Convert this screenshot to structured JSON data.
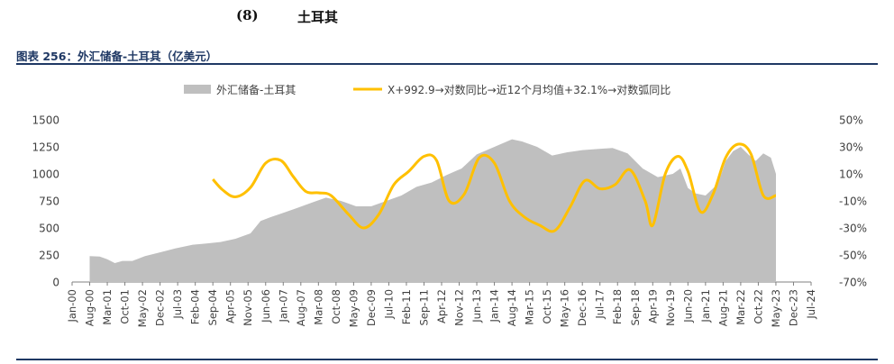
{
  "section": {
    "number": "(8)",
    "title": "土耳其"
  },
  "figure": {
    "caption": "图表 256：外汇储备-土耳其（亿美元）"
  },
  "colors": {
    "area": "#bfbfbf",
    "line": "#ffc000",
    "axis": "#808080",
    "text": "#404040",
    "caption": "#1f3864"
  },
  "chart_data": {
    "type": "area+line",
    "legend": {
      "position": "top",
      "entries": [
        "外汇储备-土耳其",
        "X+992.9→对数同比→近12个月均值+32.1%→对数弧同比"
      ]
    },
    "x_tick_labels": [
      "Jan-00",
      "Aug-00",
      "Mar-01",
      "Oct-01",
      "May-02",
      "Dec-02",
      "Jul-03",
      "Feb-04",
      "Sep-04",
      "Apr-05",
      "Nov-05",
      "Jun-06",
      "Jan-07",
      "Aug-07",
      "Mar-08",
      "Oct-08",
      "May-09",
      "Dec-09",
      "Jul-10",
      "Feb-11",
      "Sep-11",
      "Apr-12",
      "Nov-12",
      "Jun-13",
      "Jan-14",
      "Aug-14",
      "Mar-15",
      "Oct-15",
      "May-16",
      "Dec-16",
      "Jul-17",
      "Feb-18",
      "Sep-18",
      "Apr-19",
      "Nov-19",
      "Jun-20",
      "Jan-21",
      "Aug-21",
      "Mar-22",
      "Oct-22",
      "May-23",
      "Dec-23",
      "Jul-24"
    ],
    "y_left": {
      "min": 0,
      "max": 1500,
      "ticks": [
        "0",
        "250",
        "500",
        "750",
        "1000",
        "1250",
        "1500"
      ]
    },
    "y_right": {
      "min": -70,
      "max": 50,
      "ticks": [
        "-70%",
        "-50%",
        "-30%",
        "-10%",
        "10%",
        "30%",
        "50%"
      ]
    },
    "series": [
      {
        "name": "外汇储备-土耳其",
        "axis": "left",
        "type": "area",
        "x": [
          "2000-08",
          "2000-12",
          "2001-03",
          "2001-06",
          "2001-09",
          "2002-01",
          "2002-06",
          "2003-01",
          "2003-06",
          "2004-01",
          "2004-06",
          "2004-12",
          "2005-06",
          "2005-12",
          "2006-04",
          "2006-08",
          "2007-01",
          "2007-06",
          "2008-01",
          "2008-06",
          "2008-12",
          "2009-06",
          "2009-12",
          "2010-06",
          "2010-12",
          "2011-06",
          "2011-12",
          "2012-06",
          "2012-12",
          "2013-06",
          "2013-10",
          "2014-03",
          "2014-08",
          "2014-12",
          "2015-06",
          "2015-12",
          "2016-06",
          "2016-12",
          "2017-06",
          "2017-12",
          "2018-06",
          "2018-12",
          "2019-06",
          "2019-12",
          "2020-03",
          "2020-06",
          "2020-09",
          "2021-01",
          "2021-06",
          "2021-09",
          "2021-12",
          "2022-03",
          "2022-06",
          "2022-09",
          "2022-12",
          "2023-03",
          "2023-05"
        ],
        "values": [
          240,
          235,
          210,
          175,
          195,
          195,
          240,
          280,
          310,
          345,
          355,
          370,
          400,
          450,
          565,
          600,
          640,
          680,
          740,
          780,
          750,
          700,
          700,
          750,
          800,
          880,
          920,
          990,
          1050,
          1180,
          1220,
          1270,
          1320,
          1300,
          1250,
          1170,
          1200,
          1220,
          1230,
          1240,
          1190,
          1050,
          970,
          1000,
          1050,
          870,
          820,
          800,
          910,
          1120,
          1210,
          1250,
          1180,
          1120,
          1190,
          1150,
          1000
        ]
      },
      {
        "name": "X+992.9→对数同比→近12个月均值+32.1%→对数弧同比",
        "axis": "right",
        "type": "line",
        "x": [
          "2004-09",
          "2005-01",
          "2005-06",
          "2005-12",
          "2006-06",
          "2006-12",
          "2007-05",
          "2007-10",
          "2008-03",
          "2008-08",
          "2009-03",
          "2009-09",
          "2010-03",
          "2010-09",
          "2011-03",
          "2011-09",
          "2012-02",
          "2012-07",
          "2013-01",
          "2013-07",
          "2014-01",
          "2014-07",
          "2015-01",
          "2015-07",
          "2016-01",
          "2016-07",
          "2017-01",
          "2017-07",
          "2018-01",
          "2018-07",
          "2019-01",
          "2019-04",
          "2019-09",
          "2020-02",
          "2020-06",
          "2020-11",
          "2021-04",
          "2021-09",
          "2022-02",
          "2022-07",
          "2022-12",
          "2023-05"
        ],
        "values": [
          6,
          -2,
          -7,
          0,
          18,
          20,
          8,
          -3,
          -4,
          -6,
          -20,
          -30,
          -20,
          2,
          12,
          23,
          20,
          -10,
          -5,
          22,
          18,
          -10,
          -22,
          -28,
          -32,
          -15,
          5,
          -1,
          2,
          13,
          -10,
          -28,
          10,
          23,
          12,
          -18,
          -5,
          22,
          32,
          25,
          -6,
          -6
        ]
      }
    ]
  }
}
